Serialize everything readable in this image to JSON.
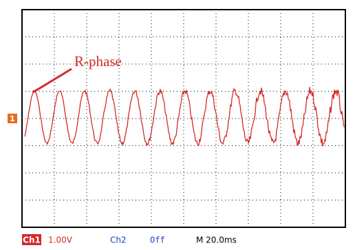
{
  "screen": {
    "annotation": "R-phase",
    "channel_marker": "1"
  },
  "status_bar": {
    "ch1_label": "Ch1",
    "ch1_scale": "1.00V",
    "ch2_label": "Ch2",
    "ch2_state": "Off",
    "timebase": "M 20.0ms"
  }
}
